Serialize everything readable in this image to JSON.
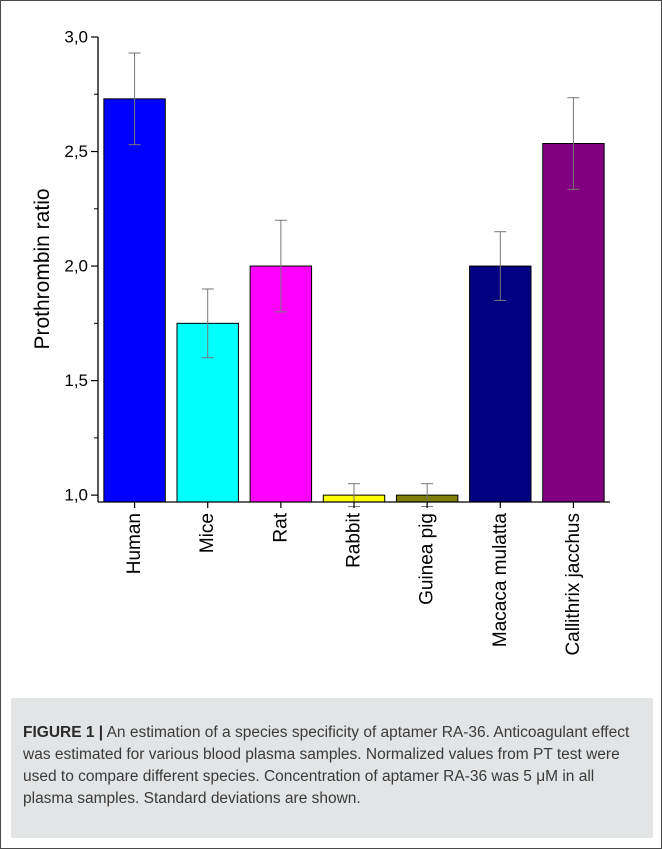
{
  "chart_data": {
    "type": "bar",
    "categories": [
      "Human",
      "Mice",
      "Rat",
      "Rabbit",
      "Guinea pig",
      "Macaca mulatta",
      "Callithrix jacchus"
    ],
    "values": [
      2.73,
      1.75,
      2.0,
      1.0,
      1.0,
      2.0,
      2.535
    ],
    "errors": [
      0.2,
      0.15,
      0.2,
      0.05,
      0.05,
      0.15,
      0.2
    ],
    "colors": [
      "#0000ff",
      "#00ffff",
      "#ff00ff",
      "#ffff00",
      "#808000",
      "#000080",
      "#800080"
    ],
    "xlabel": "",
    "ylabel": "Prothrombin ratio",
    "ylim": [
      0.97,
      3.0
    ],
    "yticks": [
      1.0,
      1.5,
      2.0,
      2.5,
      3.0
    ],
    "ytick_labels": [
      "1,0",
      "1,5",
      "2,0",
      "2,5",
      "3,0"
    ],
    "grid": false
  },
  "caption": {
    "label": "FIGURE 1 |",
    "text": "An estimation of a species specificity of aptamer RA-36. Anticoagulant effect was estimated for various blood plasma samples. Normalized values from PT test were used to compare different species. Concentration of aptamer RA-36 was 5 μM in all plasma samples. Standard deviations are shown."
  }
}
